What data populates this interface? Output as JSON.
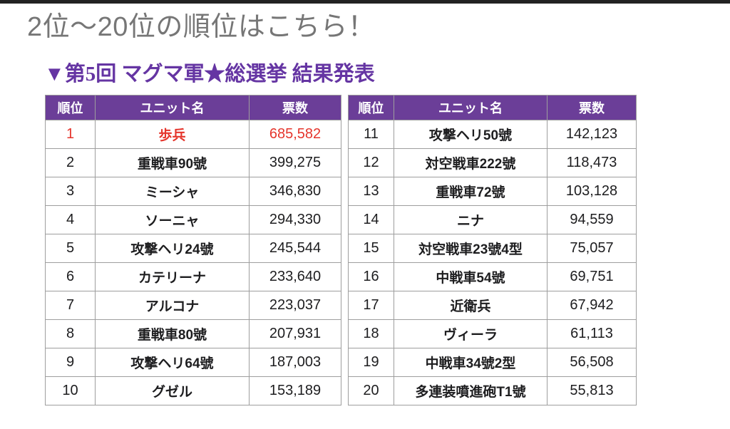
{
  "header": {
    "title": "2位〜20位の順位はこちら！",
    "section_title": "▼第5回 マグマ軍★総選挙 結果発表"
  },
  "colors": {
    "top_bar": "#232323",
    "title_gray": "#767676",
    "accent_purple_header": "#6B3E98",
    "accent_purple_title": "#6535A3",
    "highlight_red": "#E5352C",
    "cell_border": "#9e9e9e",
    "text": "#1d1d1f"
  },
  "table": {
    "columns": [
      "順位",
      "ユニット名",
      "票数"
    ],
    "left_rows": [
      {
        "rank": "1",
        "name": "歩兵",
        "votes": "685,582",
        "highlight": true
      },
      {
        "rank": "2",
        "name": "重戦車90號",
        "votes": "399,275"
      },
      {
        "rank": "3",
        "name": "ミーシャ",
        "votes": "346,830"
      },
      {
        "rank": "4",
        "name": "ソーニャ",
        "votes": "294,330"
      },
      {
        "rank": "5",
        "name": "攻撃ヘリ24號",
        "votes": "245,544"
      },
      {
        "rank": "6",
        "name": "カテリーナ",
        "votes": "233,640"
      },
      {
        "rank": "7",
        "name": "アルコナ",
        "votes": "223,037"
      },
      {
        "rank": "8",
        "name": "重戦車80號",
        "votes": "207,931"
      },
      {
        "rank": "9",
        "name": "攻撃ヘリ64號",
        "votes": "187,003"
      },
      {
        "rank": "10",
        "name": "グゼル",
        "votes": "153,189"
      }
    ],
    "right_rows": [
      {
        "rank": "11",
        "name": "攻撃ヘリ50號",
        "votes": "142,123"
      },
      {
        "rank": "12",
        "name": "対空戦車222號",
        "votes": "118,473"
      },
      {
        "rank": "13",
        "name": "重戦車72號",
        "votes": "103,128"
      },
      {
        "rank": "14",
        "name": "ニナ",
        "votes": "94,559"
      },
      {
        "rank": "15",
        "name": "対空戦車23號4型",
        "votes": "75,057"
      },
      {
        "rank": "16",
        "name": "中戦車54號",
        "votes": "69,751"
      },
      {
        "rank": "17",
        "name": "近衛兵",
        "votes": "67,942"
      },
      {
        "rank": "18",
        "name": "ヴィーラ",
        "votes": "61,113"
      },
      {
        "rank": "19",
        "name": "中戦車34號2型",
        "votes": "56,508"
      },
      {
        "rank": "20",
        "name": "多連装噴進砲T1號",
        "votes": "55,813"
      }
    ]
  },
  "chart_data": {
    "type": "table",
    "title": "2位〜20位の順位はこちら！",
    "subtitle": "▼第5回 マグマ軍★総選挙 結果発表",
    "columns": [
      "順位",
      "ユニット名",
      "票数"
    ],
    "rows": [
      [
        1,
        "歩兵",
        685582
      ],
      [
        2,
        "重戦車90號",
        399275
      ],
      [
        3,
        "ミーシャ",
        346830
      ],
      [
        4,
        "ソーニャ",
        294330
      ],
      [
        5,
        "攻撃ヘリ24號",
        245544
      ],
      [
        6,
        "カテリーナ",
        233640
      ],
      [
        7,
        "アルコナ",
        223037
      ],
      [
        8,
        "重戦車80號",
        207931
      ],
      [
        9,
        "攻撃ヘリ64號",
        187003
      ],
      [
        10,
        "グゼル",
        153189
      ],
      [
        11,
        "攻撃ヘリ50號",
        142123
      ],
      [
        12,
        "対空戦車222號",
        118473
      ],
      [
        13,
        "重戦車72號",
        103128
      ],
      [
        14,
        "ニナ",
        94559
      ],
      [
        15,
        "対空戦車23號4型",
        75057
      ],
      [
        16,
        "中戦車54號",
        69751
      ],
      [
        17,
        "近衛兵",
        67942
      ],
      [
        18,
        "ヴィーラ",
        61113
      ],
      [
        19,
        "中戦車34號2型",
        56508
      ],
      [
        20,
        "多連装噴進砲T1號",
        55813
      ]
    ],
    "notes": "Rank 1 row rendered in red; two side-by-side tables (ranks 1-10, 11-20); purple header row"
  }
}
